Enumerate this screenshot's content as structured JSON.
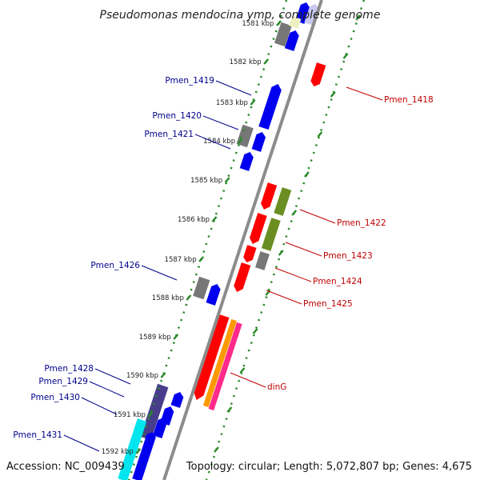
{
  "title": "Pseudomonas mendocina ymp, complete genome",
  "accession": "Accession: NC_009439",
  "summary": "Topology: circular; Length: 5,072,807 bp; Genes: 4,675",
  "colors": {
    "backbone": "#8c8c8c",
    "ticks": "#2a8a2a",
    "forward_label": "#c00000",
    "reverse_label": "#00008b"
  },
  "kbp_ticks": [
    "1581 kbp",
    "1582 kbp",
    "1583 kbp",
    "1584 kbp",
    "1585 kbp",
    "1586 kbp",
    "1587 kbp",
    "1588 kbp",
    "1589 kbp",
    "1590 kbp",
    "1591 kbp",
    "1592 kbp"
  ],
  "gene_labels": {
    "reverse": [
      "Pmen_1419",
      "Pmen_1420",
      "Pmen_1421",
      "Pmen_1426",
      "Pmen_1428",
      "Pmen_1429",
      "Pmen_1430",
      "Pmen_1431"
    ],
    "forward": [
      "Pmen_1418",
      "Pmen_1422",
      "Pmen_1423",
      "Pmen_1424",
      "Pmen_1425",
      "dinG"
    ]
  },
  "feature_colors": {
    "red": "#ff0000",
    "blue": "#0000ee",
    "gray": "#777777",
    "olive": "#6b8e23",
    "orange": "#ff9900",
    "pink": "#ff2a8a",
    "indigo": "#483d8b",
    "cyan": "#00e5ee",
    "lavender": "#c8c8f0",
    "paleyellow": "#eef0c0"
  }
}
